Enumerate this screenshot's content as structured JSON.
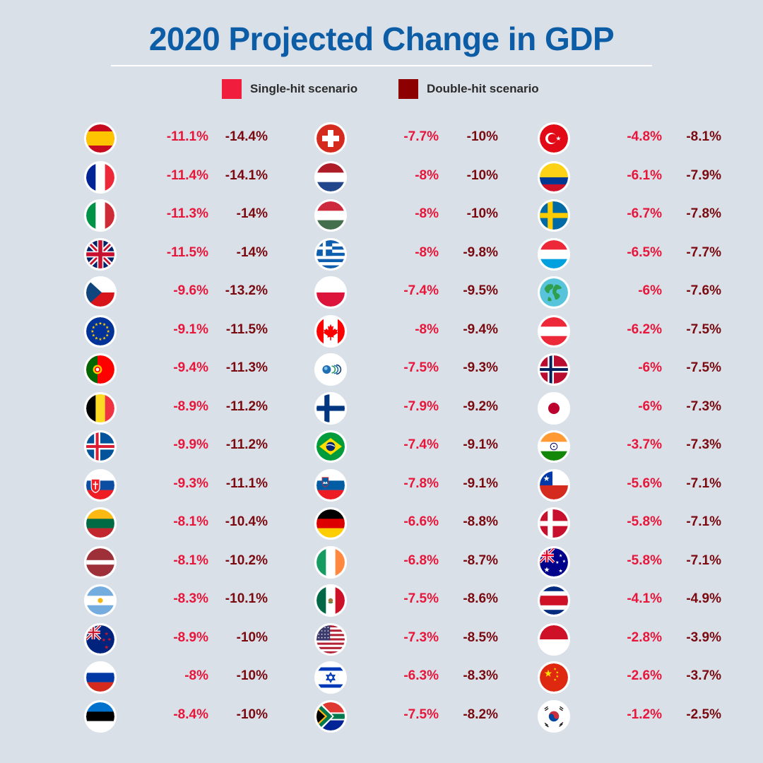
{
  "title": "2020 Projected Change in GDP",
  "legend": {
    "single": {
      "label": "Single-hit scenario",
      "color": "#f01e3c"
    },
    "double": {
      "label": "Double-hit scenario",
      "color": "#8c0000"
    }
  },
  "chart_data": {
    "type": "table",
    "title": "2020 Projected Change in GDP",
    "series": [
      {
        "name": "Single-hit scenario",
        "color": "#e8163a"
      },
      {
        "name": "Double-hit scenario",
        "color": "#7a0a10"
      }
    ],
    "columns": [
      [
        {
          "flag": "spain-flag-icon",
          "single": "-11.1%",
          "double": "-14.4%"
        },
        {
          "flag": "france-flag-icon",
          "single": "-11.4%",
          "double": "-14.1%"
        },
        {
          "flag": "italy-flag-icon",
          "single": "-11.3%",
          "double": "-14%"
        },
        {
          "flag": "uk-flag-icon",
          "single": "-11.5%",
          "double": "-14%"
        },
        {
          "flag": "czech-flag-icon",
          "single": "-9.6%",
          "double": "-13.2%"
        },
        {
          "flag": "eu-flag-icon",
          "single": "-9.1%",
          "double": "-11.5%"
        },
        {
          "flag": "portugal-flag-icon",
          "single": "-9.4%",
          "double": "-11.3%"
        },
        {
          "flag": "belgium-flag-icon",
          "single": "-8.9%",
          "double": "-11.2%"
        },
        {
          "flag": "iceland-flag-icon",
          "single": "-9.9%",
          "double": "-11.2%"
        },
        {
          "flag": "slovakia-flag-icon",
          "single": "-9.3%",
          "double": "-11.1%"
        },
        {
          "flag": "lithuania-flag-icon",
          "single": "-8.1%",
          "double": "-10.4%"
        },
        {
          "flag": "latvia-flag-icon",
          "single": "-8.1%",
          "double": "-10.2%"
        },
        {
          "flag": "argentina-flag-icon",
          "single": "-8.3%",
          "double": "-10.1%"
        },
        {
          "flag": "new-zealand-flag-icon",
          "single": "-8.9%",
          "double": "-10%"
        },
        {
          "flag": "russia-flag-icon",
          "single": "-8%",
          "double": "-10%"
        },
        {
          "flag": "estonia-flag-icon",
          "single": "-8.4%",
          "double": "-10%"
        }
      ],
      [
        {
          "flag": "switzerland-flag-icon",
          "single": "-7.7%",
          "double": "-10%"
        },
        {
          "flag": "netherlands-flag-icon",
          "single": "-8%",
          "double": "-10%"
        },
        {
          "flag": "hungary-flag-icon",
          "single": "-8%",
          "double": "-10%"
        },
        {
          "flag": "greece-flag-icon",
          "single": "-8%",
          "double": "-9.8%"
        },
        {
          "flag": "poland-flag-icon",
          "single": "-7.4%",
          "double": "-9.5%"
        },
        {
          "flag": "canada-flag-icon",
          "single": "-8%",
          "double": "-9.4%"
        },
        {
          "flag": "oecd-flag-icon",
          "single": "-7.5%",
          "double": "-9.3%"
        },
        {
          "flag": "finland-flag-icon",
          "single": "-7.9%",
          "double": "-9.2%"
        },
        {
          "flag": "brazil-flag-icon",
          "single": "-7.4%",
          "double": "-9.1%"
        },
        {
          "flag": "slovenia-flag-icon",
          "single": "-7.8%",
          "double": "-9.1%"
        },
        {
          "flag": "germany-flag-icon",
          "single": "-6.6%",
          "double": "-8.8%"
        },
        {
          "flag": "ireland-flag-icon",
          "single": "-6.8%",
          "double": "-8.7%"
        },
        {
          "flag": "mexico-flag-icon",
          "single": "-7.5%",
          "double": "-8.6%"
        },
        {
          "flag": "usa-flag-icon",
          "single": "-7.3%",
          "double": "-8.5%"
        },
        {
          "flag": "israel-flag-icon",
          "single": "-6.3%",
          "double": "-8.3%"
        },
        {
          "flag": "south-africa-flag-icon",
          "single": "-7.5%",
          "double": "-8.2%"
        }
      ],
      [
        {
          "flag": "turkey-flag-icon",
          "single": "-4.8%",
          "double": "-8.1%"
        },
        {
          "flag": "colombia-flag-icon",
          "single": "-6.1%",
          "double": "-7.9%"
        },
        {
          "flag": "sweden-flag-icon",
          "single": "-6.7%",
          "double": "-7.8%"
        },
        {
          "flag": "luxembourg-flag-icon",
          "single": "-6.5%",
          "double": "-7.7%"
        },
        {
          "flag": "world-globe-icon",
          "single": "-6%",
          "double": "-7.6%"
        },
        {
          "flag": "austria-flag-icon",
          "single": "-6.2%",
          "double": "-7.5%"
        },
        {
          "flag": "norway-flag-icon",
          "single": "-6%",
          "double": "-7.5%"
        },
        {
          "flag": "japan-flag-icon",
          "single": "-6%",
          "double": "-7.3%"
        },
        {
          "flag": "india-flag-icon",
          "single": "-3.7%",
          "double": "-7.3%"
        },
        {
          "flag": "chile-flag-icon",
          "single": "-5.6%",
          "double": "-7.1%"
        },
        {
          "flag": "denmark-flag-icon",
          "single": "-5.8%",
          "double": "-7.1%"
        },
        {
          "flag": "australia-flag-icon",
          "single": "-5.8%",
          "double": "-7.1%"
        },
        {
          "flag": "costa-rica-flag-icon",
          "single": "-4.1%",
          "double": "-4.9%"
        },
        {
          "flag": "indonesia-flag-icon",
          "single": "-2.8%",
          "double": "-3.9%"
        },
        {
          "flag": "china-flag-icon",
          "single": "-2.6%",
          "double": "-3.7%"
        },
        {
          "flag": "south-korea-flag-icon",
          "single": "-1.2%",
          "double": "-2.5%"
        }
      ]
    ]
  }
}
